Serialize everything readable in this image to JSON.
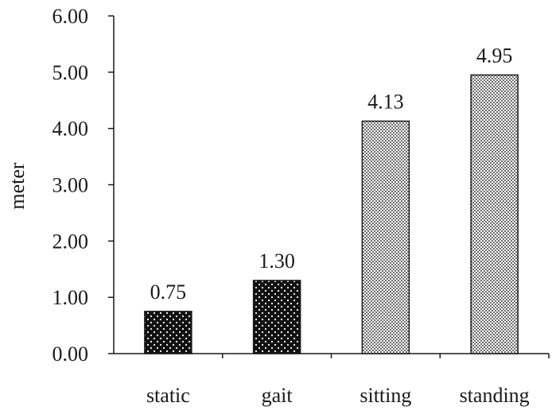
{
  "chart_data": {
    "type": "bar",
    "title": "",
    "xlabel": "",
    "ylabel": "meter",
    "ylim": [
      0,
      6
    ],
    "yticks": [
      "0.00",
      "1.00",
      "2.00",
      "3.00",
      "4.00",
      "5.00",
      "6.00"
    ],
    "categories": [
      "static",
      "gait",
      "sitting",
      "standing"
    ],
    "values": [
      0.75,
      1.3,
      4.13,
      4.95
    ],
    "value_labels": [
      "0.75",
      "1.30",
      "4.13",
      "4.95"
    ],
    "bar_patterns": [
      "dots",
      "dots",
      "crosshatch",
      "crosshatch"
    ],
    "colors": {
      "dots_background": "#111111",
      "dots_foreground": "#ffffff",
      "crosshatch": "#7a7a7a",
      "axis": "#1a1a1a"
    },
    "grid": false,
    "legend": "none"
  }
}
